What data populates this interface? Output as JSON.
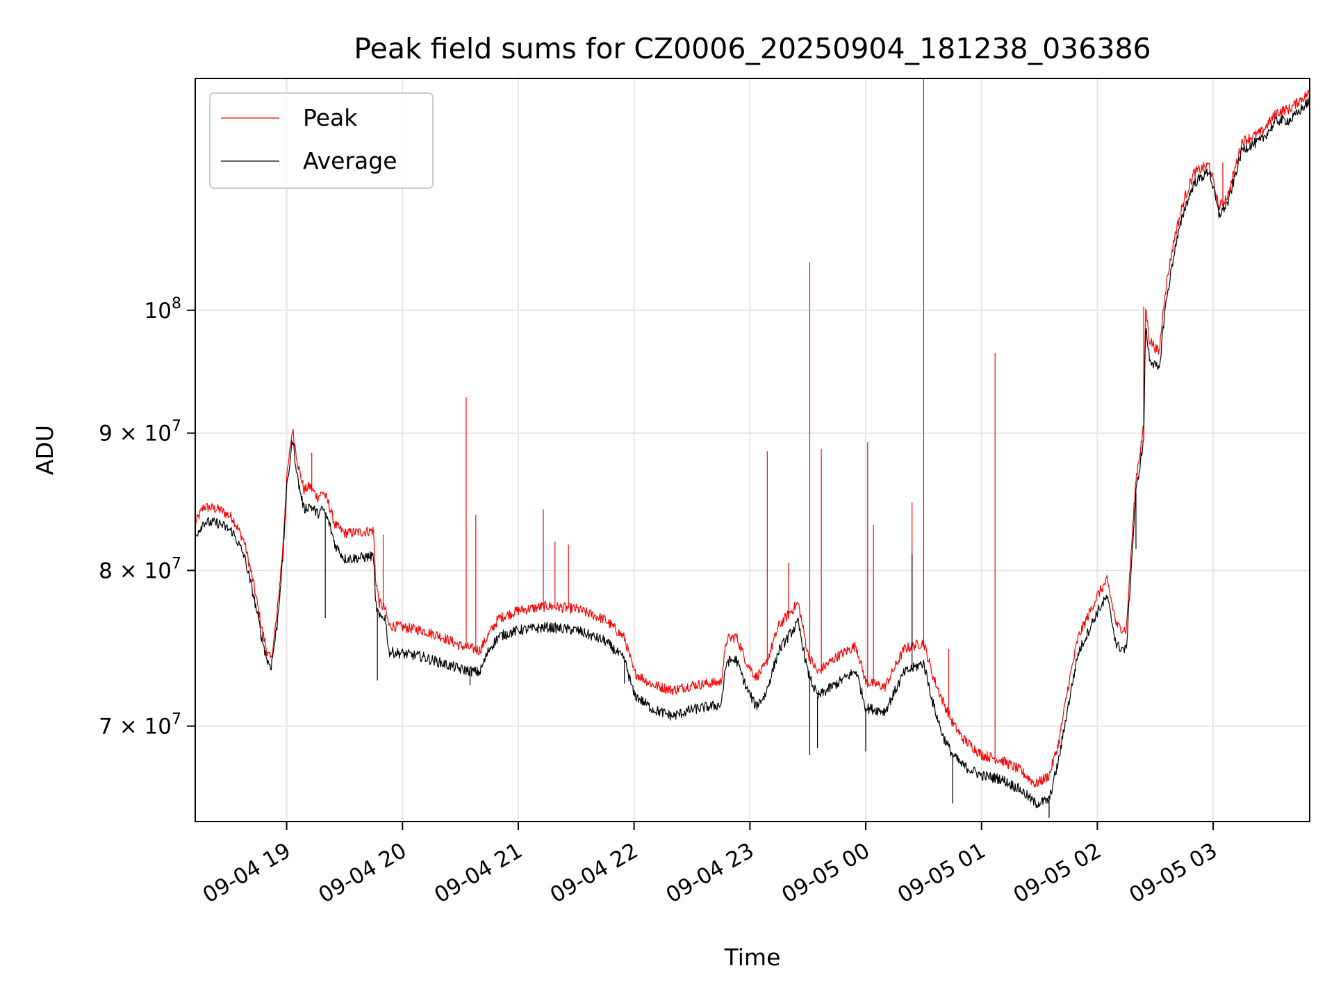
{
  "chart_data": {
    "type": "line",
    "title": "Peak field sums for CZ0006_20250904_181238_036386",
    "xlabel": "Time",
    "ylabel": "ADU",
    "y_scale": "log",
    "xlim": [
      "2025-09-04 18:12:38",
      "2025-09-05 03:50:00"
    ],
    "ylim": [
      64500000,
      122000000
    ],
    "grid": true,
    "legend": {
      "placement": "top-left",
      "entries": [
        "Peak",
        "Average"
      ]
    },
    "x_ticks": [
      {
        "value": "2025-09-04 19:00",
        "label": "09-04 19"
      },
      {
        "value": "2025-09-04 20:00",
        "label": "09-04 20"
      },
      {
        "value": "2025-09-04 21:00",
        "label": "09-04 21"
      },
      {
        "value": "2025-09-04 22:00",
        "label": "09-04 22"
      },
      {
        "value": "2025-09-04 23:00",
        "label": "09-04 23"
      },
      {
        "value": "2025-09-05 00:00",
        "label": "09-05 00"
      },
      {
        "value": "2025-09-05 01:00",
        "label": "09-05 01"
      },
      {
        "value": "2025-09-05 02:00",
        "label": "09-05 02"
      },
      {
        "value": "2025-09-05 03:00",
        "label": "09-05 03"
      }
    ],
    "y_ticks": [
      {
        "value": 70000000,
        "mantissa": "7",
        "times": "×",
        "base": "10",
        "exp": "7"
      },
      {
        "value": 80000000,
        "mantissa": "8",
        "times": "×",
        "base": "10",
        "exp": "7"
      },
      {
        "value": 90000000,
        "mantissa": "9",
        "times": "×",
        "base": "10",
        "exp": "7"
      },
      {
        "value": 100000000,
        "mantissa": "",
        "times": "",
        "base": "10",
        "exp": "8"
      }
    ],
    "series": [
      {
        "name": "Peak",
        "color": "#ff0000",
        "points": [
          [
            "2025-09-04 18:12:38",
            83300000
          ],
          [
            "2025-09-04 18:17",
            84500000
          ],
          [
            "2025-09-04 18:25",
            84300000
          ],
          [
            "2025-09-04 18:32",
            83700000
          ],
          [
            "2025-09-04 18:38",
            82000000
          ],
          [
            "2025-09-04 18:43",
            79000000
          ],
          [
            "2025-09-04 18:47",
            76200000
          ],
          [
            "2025-09-04 18:50",
            74500000
          ],
          [
            "2025-09-04 18:52",
            74100000
          ],
          [
            "2025-09-04 18:55",
            77000000
          ],
          [
            "2025-09-04 18:58",
            81500000
          ],
          [
            "2025-09-04 19:00",
            86500000
          ],
          [
            "2025-09-04 19:03",
            90300000
          ],
          [
            "2025-09-04 19:06",
            87500000
          ],
          [
            "2025-09-04 19:09",
            85700000
          ],
          [
            "2025-09-04 19:12",
            86000000
          ],
          [
            "2025-09-04 19:16",
            85200000
          ],
          [
            "2025-09-04 19:19",
            85600000
          ],
          [
            "2025-09-04 19:22",
            84600000
          ],
          [
            "2025-09-04 19:25",
            83200000
          ],
          [
            "2025-09-04 19:30",
            82600000
          ],
          [
            "2025-09-04 19:40",
            82700000
          ],
          [
            "2025-09-04 19:45",
            82800000
          ],
          [
            "2025-09-04 19:46",
            79500000
          ],
          [
            "2025-09-04 19:48",
            77800000
          ],
          [
            "2025-09-04 19:51",
            77400000
          ],
          [
            "2025-09-04 19:53",
            76300000
          ],
          [
            "2025-09-04 20:00",
            76200000
          ],
          [
            "2025-09-04 20:10",
            76000000
          ],
          [
            "2025-09-04 20:20",
            75600000
          ],
          [
            "2025-09-04 20:30",
            75000000
          ],
          [
            "2025-09-04 20:40",
            74700000
          ],
          [
            "2025-09-04 20:45",
            75800000
          ],
          [
            "2025-09-04 20:50",
            76800000
          ],
          [
            "2025-09-04 21:00",
            77300000
          ],
          [
            "2025-09-04 21:15",
            77600000
          ],
          [
            "2025-09-04 21:30",
            77400000
          ],
          [
            "2025-09-04 21:45",
            76700000
          ],
          [
            "2025-09-04 21:55",
            75500000
          ],
          [
            "2025-09-04 22:00",
            73300000
          ],
          [
            "2025-09-04 22:10",
            72500000
          ],
          [
            "2025-09-04 22:20",
            72200000
          ],
          [
            "2025-09-04 22:30",
            72500000
          ],
          [
            "2025-09-04 22:45",
            72700000
          ],
          [
            "2025-09-04 22:48",
            75400000
          ],
          [
            "2025-09-04 22:53",
            75600000
          ],
          [
            "2025-09-04 22:58",
            74000000
          ],
          [
            "2025-09-04 23:03",
            73000000
          ],
          [
            "2025-09-04 23:08",
            73700000
          ],
          [
            "2025-09-04 23:15",
            76300000
          ],
          [
            "2025-09-04 23:25",
            77800000
          ],
          [
            "2025-09-04 23:30",
            74500000
          ],
          [
            "2025-09-04 23:35",
            73300000
          ],
          [
            "2025-09-04 23:45",
            74300000
          ],
          [
            "2025-09-04 23:55",
            75000000
          ],
          [
            "2025-09-05 00:00",
            72700000
          ],
          [
            "2025-09-05 00:10",
            72400000
          ],
          [
            "2025-09-05 00:20",
            74800000
          ],
          [
            "2025-09-05 00:30",
            75200000
          ],
          [
            "2025-09-05 00:35",
            73000000
          ],
          [
            "2025-09-05 00:40",
            71500000
          ],
          [
            "2025-09-05 00:45",
            70200000
          ],
          [
            "2025-09-05 00:50",
            69300000
          ],
          [
            "2025-09-05 01:00",
            68300000
          ],
          [
            "2025-09-05 01:10",
            68000000
          ],
          [
            "2025-09-05 01:20",
            67400000
          ],
          [
            "2025-09-05 01:28",
            66600000
          ],
          [
            "2025-09-05 01:35",
            67100000
          ],
          [
            "2025-09-05 01:40",
            69000000
          ],
          [
            "2025-09-05 01:45",
            72500000
          ],
          [
            "2025-09-05 01:50",
            75500000
          ],
          [
            "2025-09-05 02:00",
            78300000
          ],
          [
            "2025-09-05 02:05",
            79300000
          ],
          [
            "2025-09-05 02:10",
            76300000
          ],
          [
            "2025-09-05 02:15",
            76000000
          ],
          [
            "2025-09-05 02:20",
            86500000
          ],
          [
            "2025-09-05 02:24",
            90500000
          ],
          [
            "2025-09-05 02:25",
            100200000
          ],
          [
            "2025-09-05 02:27",
            97500000
          ],
          [
            "2025-09-05 02:32",
            96400000
          ],
          [
            "2025-09-05 02:35",
            101500000
          ],
          [
            "2025-09-05 02:40",
            106500000
          ],
          [
            "2025-09-05 02:45",
            110000000
          ],
          [
            "2025-09-05 02:50",
            112500000
          ],
          [
            "2025-09-05 02:58",
            113300000
          ],
          [
            "2025-09-05 03:03",
            109200000
          ],
          [
            "2025-09-05 03:08",
            110500000
          ],
          [
            "2025-09-05 03:15",
            115600000
          ],
          [
            "2025-09-05 03:25",
            116500000
          ],
          [
            "2025-09-05 03:33",
            118500000
          ],
          [
            "2025-09-05 03:40",
            118900000
          ],
          [
            "2025-09-05 03:45",
            119800000
          ],
          [
            "2025-09-05 03:50",
            120500000
          ]
        ],
        "spikes": [
          [
            "2025-09-04 19:13",
            88500000
          ],
          [
            "2025-09-04 19:50",
            82500000
          ],
          [
            "2025-09-04 20:33",
            92800000
          ],
          [
            "2025-09-04 20:38",
            83900000
          ],
          [
            "2025-09-04 21:13",
            84300000
          ],
          [
            "2025-09-04 21:19",
            82000000
          ],
          [
            "2025-09-04 21:26",
            81800000
          ],
          [
            "2025-09-04 23:09",
            88600000
          ],
          [
            "2025-09-04 23:20",
            80500000
          ],
          [
            "2025-09-04 23:31",
            104200000
          ],
          [
            "2025-09-04 23:37",
            88800000
          ],
          [
            "2025-09-05 00:01",
            89300000
          ],
          [
            "2025-09-05 00:04",
            83200000
          ],
          [
            "2025-09-05 00:24",
            84800000
          ],
          [
            "2025-09-05 00:30",
            122000000
          ],
          [
            "2025-09-05 00:43",
            74800000
          ],
          [
            "2025-09-05 01:07",
            96400000
          ],
          [
            "2025-09-05 02:24",
            100300000
          ],
          [
            "2025-09-05 03:05",
            113500000
          ]
        ]
      },
      {
        "name": "Average",
        "color": "#000000",
        "points": [
          [
            "2025-09-04 18:12:38",
            82400000
          ],
          [
            "2025-09-04 18:17",
            83400000
          ],
          [
            "2025-09-04 18:25",
            83300000
          ],
          [
            "2025-09-04 18:32",
            82700000
          ],
          [
            "2025-09-04 18:38",
            81000000
          ],
          [
            "2025-09-04 18:43",
            78200000
          ],
          [
            "2025-09-04 18:47",
            75600000
          ],
          [
            "2025-09-04 18:50",
            74000000
          ],
          [
            "2025-09-04 18:52",
            73700000
          ],
          [
            "2025-09-04 18:55",
            76300000
          ],
          [
            "2025-09-04 18:58",
            80800000
          ],
          [
            "2025-09-04 19:00",
            85700000
          ],
          [
            "2025-09-04 19:03",
            89500000
          ],
          [
            "2025-09-04 19:06",
            86300000
          ],
          [
            "2025-09-04 19:09",
            84300000
          ],
          [
            "2025-09-04 19:12",
            84600000
          ],
          [
            "2025-09-04 19:16",
            84000000
          ],
          [
            "2025-09-04 19:19",
            84300000
          ],
          [
            "2025-09-04 19:22",
            83300000
          ],
          [
            "2025-09-04 19:25",
            81800000
          ],
          [
            "2025-09-04 19:30",
            80800000
          ],
          [
            "2025-09-04 19:40",
            80900000
          ],
          [
            "2025-09-04 19:45",
            81000000
          ],
          [
            "2025-09-04 19:46",
            77800000
          ],
          [
            "2025-09-04 19:48",
            76800000
          ],
          [
            "2025-09-04 19:51",
            76900000
          ],
          [
            "2025-09-04 19:53",
            74600000
          ],
          [
            "2025-09-04 20:00",
            74500000
          ],
          [
            "2025-09-04 20:10",
            74300000
          ],
          [
            "2025-09-04 20:20",
            73900000
          ],
          [
            "2025-09-04 20:30",
            73500000
          ],
          [
            "2025-09-04 20:40",
            73300000
          ],
          [
            "2025-09-04 20:45",
            74800000
          ],
          [
            "2025-09-04 20:50",
            75600000
          ],
          [
            "2025-09-04 21:00",
            76000000
          ],
          [
            "2025-09-04 21:15",
            76200000
          ],
          [
            "2025-09-04 21:30",
            76000000
          ],
          [
            "2025-09-04 21:45",
            75300000
          ],
          [
            "2025-09-04 21:55",
            74100000
          ],
          [
            "2025-09-04 22:00",
            71900000
          ],
          [
            "2025-09-04 22:10",
            71000000
          ],
          [
            "2025-09-04 22:20",
            70600000
          ],
          [
            "2025-09-04 22:30",
            71000000
          ],
          [
            "2025-09-04 22:45",
            71300000
          ],
          [
            "2025-09-04 22:48",
            74000000
          ],
          [
            "2025-09-04 22:53",
            74100000
          ],
          [
            "2025-09-04 22:58",
            72400000
          ],
          [
            "2025-09-04 23:03",
            71200000
          ],
          [
            "2025-09-04 23:08",
            71900000
          ],
          [
            "2025-09-04 23:15",
            74700000
          ],
          [
            "2025-09-04 23:25",
            76500000
          ],
          [
            "2025-09-04 23:30",
            73300000
          ],
          [
            "2025-09-04 23:35",
            71800000
          ],
          [
            "2025-09-04 23:45",
            72600000
          ],
          [
            "2025-09-04 23:55",
            73400000
          ],
          [
            "2025-09-05 00:00",
            71100000
          ],
          [
            "2025-09-05 00:10",
            70900000
          ],
          [
            "2025-09-05 00:20",
            73300000
          ],
          [
            "2025-09-05 00:30",
            73900000
          ],
          [
            "2025-09-05 00:35",
            71300000
          ],
          [
            "2025-09-05 00:40",
            69400000
          ],
          [
            "2025-09-05 00:45",
            68300000
          ],
          [
            "2025-09-05 00:50",
            67700000
          ],
          [
            "2025-09-05 01:00",
            67100000
          ],
          [
            "2025-09-05 01:10",
            66900000
          ],
          [
            "2025-09-05 01:20",
            66300000
          ],
          [
            "2025-09-05 01:28",
            65500000
          ],
          [
            "2025-09-05 01:35",
            65700000
          ],
          [
            "2025-09-05 01:40",
            68000000
          ],
          [
            "2025-09-05 01:45",
            71300000
          ],
          [
            "2025-09-05 01:50",
            74500000
          ],
          [
            "2025-09-05 02:00",
            77200000
          ],
          [
            "2025-09-05 02:05",
            78200000
          ],
          [
            "2025-09-05 02:10",
            75000000
          ],
          [
            "2025-09-05 02:15",
            74700000
          ],
          [
            "2025-09-05 02:20",
            85500000
          ],
          [
            "2025-09-05 02:24",
            89500000
          ],
          [
            "2025-09-05 02:25",
            98500000
          ],
          [
            "2025-09-05 02:27",
            96000000
          ],
          [
            "2025-09-05 02:32",
            94900000
          ],
          [
            "2025-09-05 02:35",
            100000000
          ],
          [
            "2025-09-05 02:40",
            105300000
          ],
          [
            "2025-09-05 02:45",
            109000000
          ],
          [
            "2025-09-05 02:50",
            111500000
          ],
          [
            "2025-09-05 02:58",
            112700000
          ],
          [
            "2025-09-05 03:03",
            108500000
          ],
          [
            "2025-09-05 03:08",
            109800000
          ],
          [
            "2025-09-05 03:15",
            114800000
          ],
          [
            "2025-09-05 03:25",
            115700000
          ],
          [
            "2025-09-05 03:33",
            117700000
          ],
          [
            "2025-09-05 03:40",
            117700000
          ],
          [
            "2025-09-05 03:45",
            118700000
          ],
          [
            "2025-09-05 03:50",
            119700000
          ]
        ],
        "spikes": [
          [
            "2025-09-04 19:20",
            76800000
          ],
          [
            "2025-09-04 19:47",
            72800000
          ],
          [
            "2025-09-04 20:35",
            72500000
          ],
          [
            "2025-09-04 21:55",
            72600000
          ],
          [
            "2025-09-04 23:31",
            68300000
          ],
          [
            "2025-09-04 23:35",
            68700000
          ],
          [
            "2025-09-05 00:00",
            68500000
          ],
          [
            "2025-09-05 00:24",
            81200000
          ],
          [
            "2025-09-05 00:45",
            65500000
          ],
          [
            "2025-09-05 01:35",
            64700000
          ],
          [
            "2025-09-05 02:20",
            81500000
          ]
        ]
      }
    ]
  }
}
